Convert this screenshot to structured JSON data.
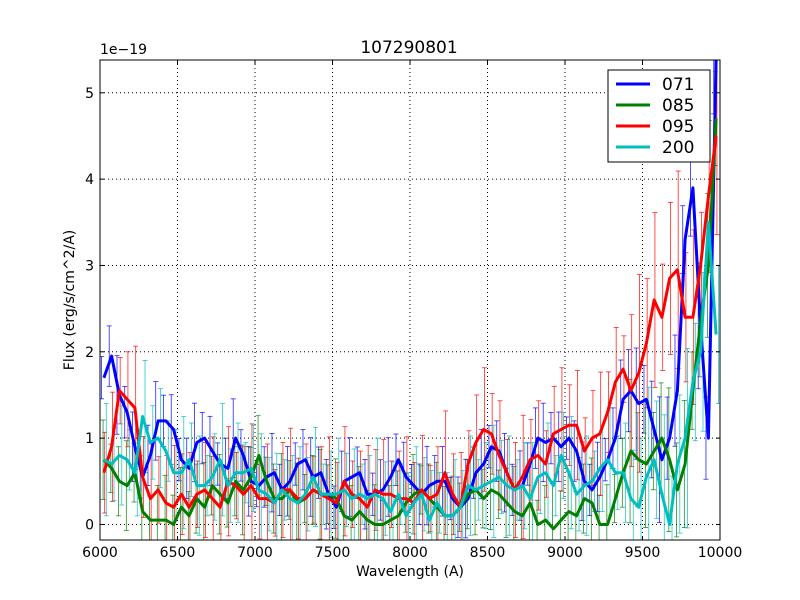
{
  "chart_data": {
    "type": "line",
    "title": "107290801",
    "xlabel": "Wavelength (A)",
    "ylabel": "Flux (erg/s/cm^2/A)",
    "y_offset_label": "1e−19",
    "xlim": [
      6000,
      10000
    ],
    "ylim": [
      -0.18,
      5.38
    ],
    "x_ticks": [
      6000,
      6500,
      7000,
      7500,
      8000,
      8500,
      9000,
      9500,
      10000
    ],
    "x_tick_labels": [
      "6000",
      "6500",
      "7000",
      "7500",
      "8000",
      "8500",
      "9000",
      "9500",
      "10000"
    ],
    "y_ticks": [
      0,
      1,
      2,
      3,
      4,
      5
    ],
    "y_tick_labels": [
      "0",
      "1",
      "2",
      "3",
      "4",
      "5"
    ],
    "grid": true,
    "legend_position": "top-right",
    "x": [
      6025,
      6075,
      6125,
      6175,
      6225,
      6275,
      6325,
      6375,
      6425,
      6475,
      6525,
      6575,
      6625,
      6675,
      6725,
      6775,
      6825,
      6875,
      6925,
      6975,
      7025,
      7075,
      7125,
      7175,
      7225,
      7275,
      7325,
      7375,
      7425,
      7475,
      7525,
      7575,
      7625,
      7675,
      7725,
      7775,
      7825,
      7875,
      7925,
      7975,
      8025,
      8075,
      8125,
      8175,
      8225,
      8275,
      8325,
      8375,
      8425,
      8475,
      8525,
      8575,
      8625,
      8675,
      8725,
      8775,
      8825,
      8875,
      8925,
      8975,
      9025,
      9075,
      9125,
      9175,
      9225,
      9275,
      9325,
      9375,
      9425,
      9475,
      9525,
      9575,
      9625,
      9675,
      9725,
      9775,
      9825,
      9875,
      9925,
      9975
    ],
    "series": [
      {
        "name": "071",
        "color": "#0000ff",
        "err": 0.35,
        "values": [
          1.7,
          1.95,
          1.5,
          1.3,
          0.9,
          0.55,
          0.8,
          1.2,
          1.2,
          1.1,
          0.75,
          0.65,
          0.95,
          1.0,
          0.85,
          0.7,
          0.65,
          1.0,
          0.8,
          0.5,
          0.45,
          0.55,
          0.6,
          0.4,
          0.5,
          0.7,
          0.75,
          0.55,
          0.6,
          0.35,
          0.2,
          0.5,
          0.55,
          0.6,
          0.35,
          0.35,
          0.4,
          0.55,
          0.75,
          0.55,
          0.45,
          0.35,
          0.45,
          0.5,
          0.5,
          0.3,
          0.2,
          0.3,
          0.6,
          0.7,
          0.9,
          0.85,
          0.6,
          0.4,
          0.45,
          0.7,
          1.0,
          0.95,
          1.0,
          0.9,
          1.0,
          0.85,
          0.5,
          0.4,
          0.55,
          0.75,
          1.0,
          1.45,
          1.55,
          1.4,
          1.45,
          1.1,
          0.75,
          1.0,
          1.55,
          3.3,
          3.9,
          2.3,
          1.0,
          5.4
        ]
      },
      {
        "name": "085",
        "color": "#008000",
        "err": 0.4,
        "values": [
          0.75,
          0.65,
          0.5,
          0.45,
          0.6,
          0.15,
          0.05,
          0.05,
          0.05,
          0.0,
          0.2,
          0.1,
          0.3,
          0.2,
          0.45,
          0.35,
          0.25,
          0.5,
          0.4,
          0.55,
          0.8,
          0.5,
          0.3,
          0.3,
          0.4,
          0.25,
          0.3,
          0.4,
          0.35,
          0.35,
          0.3,
          0.1,
          0.05,
          0.15,
          0.05,
          0.0,
          0.0,
          0.05,
          0.1,
          0.25,
          0.35,
          0.4,
          0.3,
          0.2,
          0.1,
          0.1,
          0.2,
          0.35,
          0.4,
          0.3,
          0.4,
          0.35,
          0.25,
          0.15,
          0.1,
          0.25,
          0.0,
          0.05,
          -0.05,
          0.05,
          0.15,
          0.1,
          0.3,
          0.25,
          0.0,
          0.0,
          0.3,
          0.6,
          0.85,
          0.75,
          0.7,
          0.85,
          1.0,
          0.75,
          0.4,
          0.7,
          1.55,
          2.35,
          3.0,
          4.7
        ]
      },
      {
        "name": "095",
        "color": "#ff0000",
        "err": 0.55,
        "values": [
          0.6,
          0.9,
          1.55,
          1.45,
          1.35,
          0.55,
          0.3,
          0.4,
          0.25,
          0.2,
          0.35,
          0.2,
          0.35,
          0.4,
          0.3,
          0.2,
          0.5,
          0.45,
          0.35,
          0.45,
          0.3,
          0.3,
          0.25,
          0.4,
          0.4,
          0.3,
          0.3,
          0.4,
          0.35,
          0.3,
          0.25,
          0.5,
          0.35,
          0.3,
          0.2,
          0.4,
          0.35,
          0.35,
          0.3,
          0.3,
          0.25,
          0.4,
          0.3,
          0.35,
          0.6,
          0.35,
          0.2,
          0.7,
          0.95,
          1.1,
          1.05,
          0.8,
          0.6,
          0.4,
          0.55,
          0.75,
          0.8,
          0.7,
          1.05,
          1.1,
          1.15,
          1.15,
          0.85,
          1.0,
          1.05,
          1.3,
          1.65,
          1.8,
          1.55,
          1.75,
          2.1,
          2.6,
          2.4,
          2.85,
          2.95,
          2.4,
          2.4,
          3.0,
          3.8,
          4.5
        ]
      },
      {
        "name": "200",
        "color": "#00bfbf",
        "err": 0.5,
        "values": [
          0.75,
          0.7,
          0.8,
          0.75,
          0.6,
          1.25,
          0.95,
          1.0,
          0.85,
          0.6,
          0.6,
          0.75,
          0.45,
          0.45,
          0.55,
          0.75,
          0.45,
          0.6,
          0.6,
          0.65,
          0.4,
          0.35,
          0.25,
          0.4,
          0.3,
          0.25,
          0.35,
          0.55,
          0.35,
          0.35,
          0.35,
          0.4,
          0.3,
          0.35,
          0.3,
          0.35,
          0.3,
          0.15,
          0.35,
          0.1,
          0.25,
          0.35,
          0.05,
          0.25,
          0.1,
          0.1,
          0.2,
          0.45,
          0.4,
          0.45,
          0.5,
          0.55,
          0.45,
          0.4,
          0.45,
          0.3,
          0.55,
          0.6,
          0.45,
          0.8,
          0.6,
          0.35,
          0.45,
          0.5,
          0.65,
          0.75,
          0.6,
          0.6,
          0.3,
          0.2,
          0.55,
          0.75,
          0.35,
          0.0,
          0.7,
          1.0,
          1.65,
          2.0,
          3.5,
          2.2
        ]
      }
    ]
  }
}
